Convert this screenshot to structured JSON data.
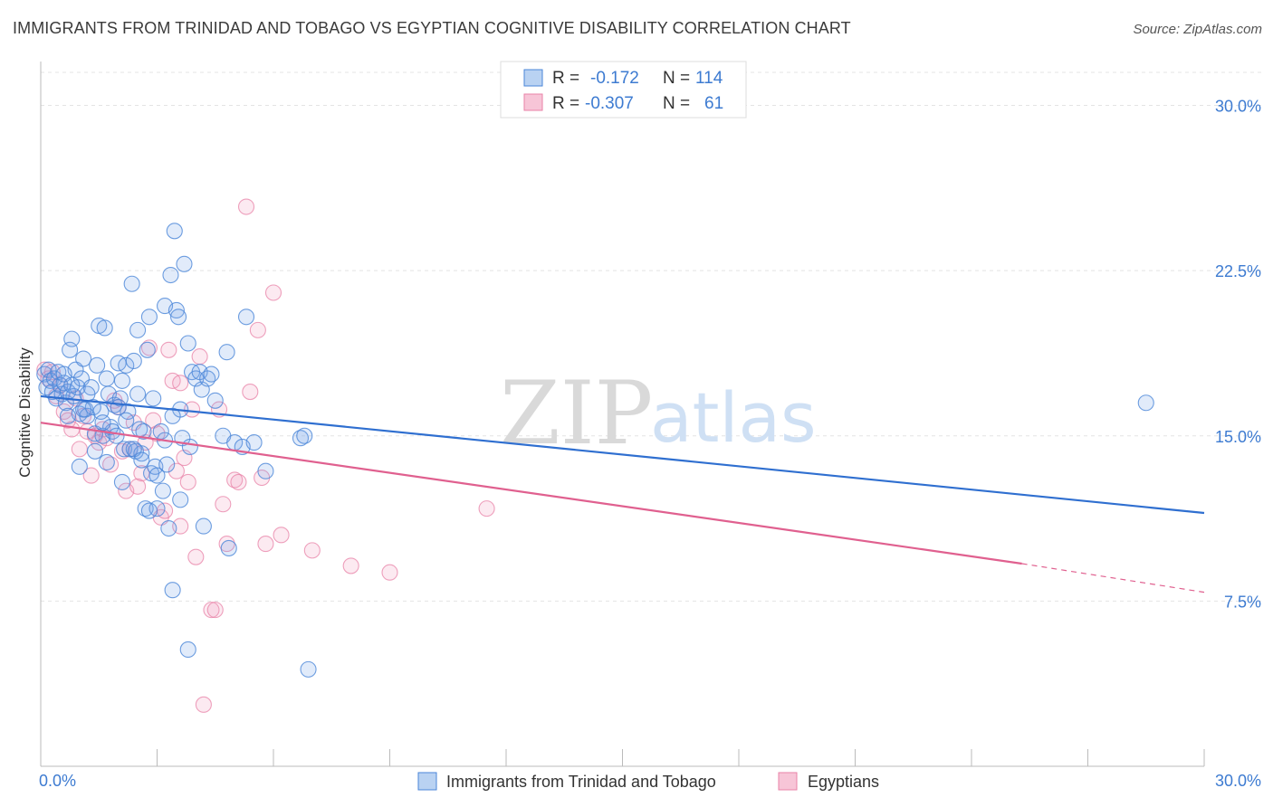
{
  "title": "IMMIGRANTS FROM TRINIDAD AND TOBAGO VS EGYPTIAN COGNITIVE DISABILITY CORRELATION CHART",
  "source": "Source: ZipAtlas.com",
  "watermark": {
    "zip": "ZIP",
    "atlas": "atlas"
  },
  "legend_top": [
    {
      "r_label": "R =",
      "r_value": "-0.172",
      "n_label": "N =",
      "n_value": "114"
    },
    {
      "r_label": "R =",
      "r_value": "-0.307",
      "n_label": "N =",
      "n_value": "61"
    }
  ],
  "chart_data": {
    "type": "scatter",
    "title": "IMMIGRANTS FROM TRINIDAD AND TOBAGO VS EGYPTIAN COGNITIVE DISABILITY CORRELATION CHART",
    "xlabel": "",
    "ylabel": "Cognitive Disability",
    "xlim": [
      0,
      30
    ],
    "ylim": [
      0,
      31.5
    ],
    "x_tick_labels": [
      "0.0%",
      "30.0%"
    ],
    "y_ticks": [
      7.5,
      15.0,
      22.5,
      30.0
    ],
    "y_tick_labels": [
      "7.5%",
      "15.0%",
      "22.5%",
      "30.0%"
    ],
    "grid": true,
    "legend_position": "bottom",
    "colors": {
      "blue": "#4a86d8",
      "pink": "#e882a7",
      "blue_line": "#2f6fd0",
      "pink_line": "#e0608f",
      "axis_text": "#3d7bd1"
    },
    "series": [
      {
        "name": "Immigrants from Trinidad and Tobago",
        "color": "#4a86d8",
        "trend": {
          "x": [
            0,
            30
          ],
          "y": [
            16.8,
            11.5
          ]
        },
        "points": [
          [
            0.1,
            17.8
          ],
          [
            0.15,
            17.2
          ],
          [
            0.2,
            18.0
          ],
          [
            0.25,
            17.5
          ],
          [
            0.3,
            17.0
          ],
          [
            0.35,
            17.6
          ],
          [
            0.4,
            16.7
          ],
          [
            0.45,
            17.9
          ],
          [
            0.5,
            17.3
          ],
          [
            0.55,
            16.9
          ],
          [
            0.6,
            17.4
          ],
          [
            0.65,
            16.5
          ],
          [
            0.7,
            17.0
          ],
          [
            0.75,
            18.9
          ],
          [
            0.8,
            19.4
          ],
          [
            0.85,
            16.8
          ],
          [
            0.9,
            18.0
          ],
          [
            0.95,
            17.2
          ],
          [
            1.0,
            16.0
          ],
          [
            1.05,
            17.6
          ],
          [
            1.1,
            18.5
          ],
          [
            1.15,
            16.2
          ],
          [
            1.2,
            15.9
          ],
          [
            1.3,
            17.2
          ],
          [
            1.35,
            16.3
          ],
          [
            1.4,
            15.1
          ],
          [
            1.45,
            18.2
          ],
          [
            1.5,
            20.0
          ],
          [
            1.55,
            16.1
          ],
          [
            1.6,
            15.0
          ],
          [
            1.65,
            19.9
          ],
          [
            1.7,
            17.6
          ],
          [
            1.75,
            16.9
          ],
          [
            1.8,
            15.4
          ],
          [
            1.85,
            15.2
          ],
          [
            1.9,
            16.4
          ],
          [
            1.95,
            15.0
          ],
          [
            2.0,
            18.3
          ],
          [
            2.05,
            16.7
          ],
          [
            2.1,
            17.5
          ],
          [
            2.15,
            14.4
          ],
          [
            2.2,
            18.2
          ],
          [
            2.25,
            16.1
          ],
          [
            2.3,
            14.4
          ],
          [
            2.35,
            21.9
          ],
          [
            2.4,
            18.4
          ],
          [
            2.45,
            14.3
          ],
          [
            2.5,
            19.8
          ],
          [
            2.55,
            15.3
          ],
          [
            2.6,
            14.2
          ],
          [
            2.65,
            15.2
          ],
          [
            2.7,
            11.7
          ],
          [
            2.75,
            18.9
          ],
          [
            2.8,
            20.4
          ],
          [
            2.85,
            13.3
          ],
          [
            2.9,
            16.7
          ],
          [
            2.95,
            13.6
          ],
          [
            3.0,
            11.7
          ],
          [
            3.1,
            15.2
          ],
          [
            3.15,
            12.5
          ],
          [
            3.2,
            20.9
          ],
          [
            3.25,
            13.7
          ],
          [
            3.3,
            10.8
          ],
          [
            3.35,
            22.3
          ],
          [
            3.4,
            8.0
          ],
          [
            3.45,
            24.3
          ],
          [
            3.5,
            20.7
          ],
          [
            3.55,
            20.4
          ],
          [
            3.6,
            16.2
          ],
          [
            3.65,
            14.9
          ],
          [
            3.7,
            22.8
          ],
          [
            3.8,
            5.3
          ],
          [
            3.85,
            14.5
          ],
          [
            3.9,
            17.9
          ],
          [
            4.0,
            17.6
          ],
          [
            4.1,
            17.9
          ],
          [
            4.15,
            17.1
          ],
          [
            4.2,
            10.9
          ],
          [
            4.3,
            17.6
          ],
          [
            4.4,
            17.8
          ],
          [
            4.7,
            15.0
          ],
          [
            4.8,
            18.8
          ],
          [
            4.85,
            9.9
          ],
          [
            5.0,
            14.7
          ],
          [
            5.2,
            14.5
          ],
          [
            5.3,
            20.4
          ],
          [
            5.5,
            14.7
          ],
          [
            5.8,
            13.4
          ],
          [
            6.7,
            14.9
          ],
          [
            6.8,
            15.0
          ],
          [
            6.9,
            4.4
          ],
          [
            0.6,
            17.8
          ],
          [
            0.7,
            15.9
          ],
          [
            0.8,
            17.3
          ],
          [
            1.0,
            13.6
          ],
          [
            1.1,
            16.2
          ],
          [
            1.2,
            16.9
          ],
          [
            1.4,
            14.3
          ],
          [
            1.6,
            15.6
          ],
          [
            1.7,
            13.8
          ],
          [
            2.0,
            16.3
          ],
          [
            2.1,
            12.9
          ],
          [
            2.2,
            15.7
          ],
          [
            2.4,
            14.4
          ],
          [
            2.5,
            16.9
          ],
          [
            2.6,
            13.9
          ],
          [
            2.8,
            11.6
          ],
          [
            3.0,
            13.2
          ],
          [
            3.2,
            14.8
          ],
          [
            3.4,
            15.9
          ],
          [
            3.6,
            12.1
          ],
          [
            3.8,
            19.2
          ],
          [
            4.5,
            16.6
          ],
          [
            28.5,
            16.5
          ]
        ]
      },
      {
        "name": "Egyptians",
        "color": "#e882a7",
        "trend": {
          "x": [
            0,
            25.3
          ],
          "y": [
            15.6,
            9.2
          ]
        },
        "trend_dashed": {
          "x": [
            25.3,
            30
          ],
          "y": [
            9.2,
            7.9
          ]
        },
        "points": [
          [
            0.1,
            18.0
          ],
          [
            0.2,
            17.6
          ],
          [
            0.3,
            17.9
          ],
          [
            0.4,
            16.8
          ],
          [
            0.5,
            17.3
          ],
          [
            0.6,
            16.1
          ],
          [
            0.7,
            15.7
          ],
          [
            0.8,
            15.3
          ],
          [
            0.9,
            16.7
          ],
          [
            1.0,
            14.4
          ],
          [
            1.1,
            15.9
          ],
          [
            1.2,
            15.2
          ],
          [
            1.3,
            13.2
          ],
          [
            1.4,
            15.0
          ],
          [
            1.5,
            14.7
          ],
          [
            1.6,
            15.3
          ],
          [
            1.7,
            14.9
          ],
          [
            1.8,
            13.7
          ],
          [
            1.9,
            16.6
          ],
          [
            2.0,
            16.3
          ],
          [
            2.1,
            14.3
          ],
          [
            2.2,
            12.5
          ],
          [
            2.3,
            14.4
          ],
          [
            2.4,
            15.6
          ],
          [
            2.5,
            12.7
          ],
          [
            2.6,
            13.3
          ],
          [
            2.7,
            14.7
          ],
          [
            2.8,
            19.0
          ],
          [
            2.9,
            15.7
          ],
          [
            3.0,
            15.1
          ],
          [
            3.1,
            11.3
          ],
          [
            3.2,
            11.6
          ],
          [
            3.3,
            18.9
          ],
          [
            3.4,
            17.5
          ],
          [
            3.5,
            13.4
          ],
          [
            3.6,
            10.9
          ],
          [
            3.7,
            14.0
          ],
          [
            3.8,
            12.9
          ],
          [
            3.9,
            16.2
          ],
          [
            4.0,
            9.5
          ],
          [
            4.1,
            18.6
          ],
          [
            4.2,
            2.8
          ],
          [
            4.4,
            7.1
          ],
          [
            4.5,
            7.1
          ],
          [
            4.6,
            16.2
          ],
          [
            4.7,
            11.9
          ],
          [
            4.8,
            10.1
          ],
          [
            5.0,
            13.0
          ],
          [
            5.1,
            12.9
          ],
          [
            5.3,
            25.4
          ],
          [
            5.4,
            17.0
          ],
          [
            5.6,
            19.8
          ],
          [
            5.7,
            13.1
          ],
          [
            5.8,
            10.1
          ],
          [
            6.0,
            21.5
          ],
          [
            6.2,
            10.5
          ],
          [
            7.0,
            9.8
          ],
          [
            8.0,
            9.1
          ],
          [
            9.0,
            8.8
          ],
          [
            11.5,
            11.7
          ],
          [
            3.6,
            17.4
          ]
        ]
      }
    ]
  }
}
